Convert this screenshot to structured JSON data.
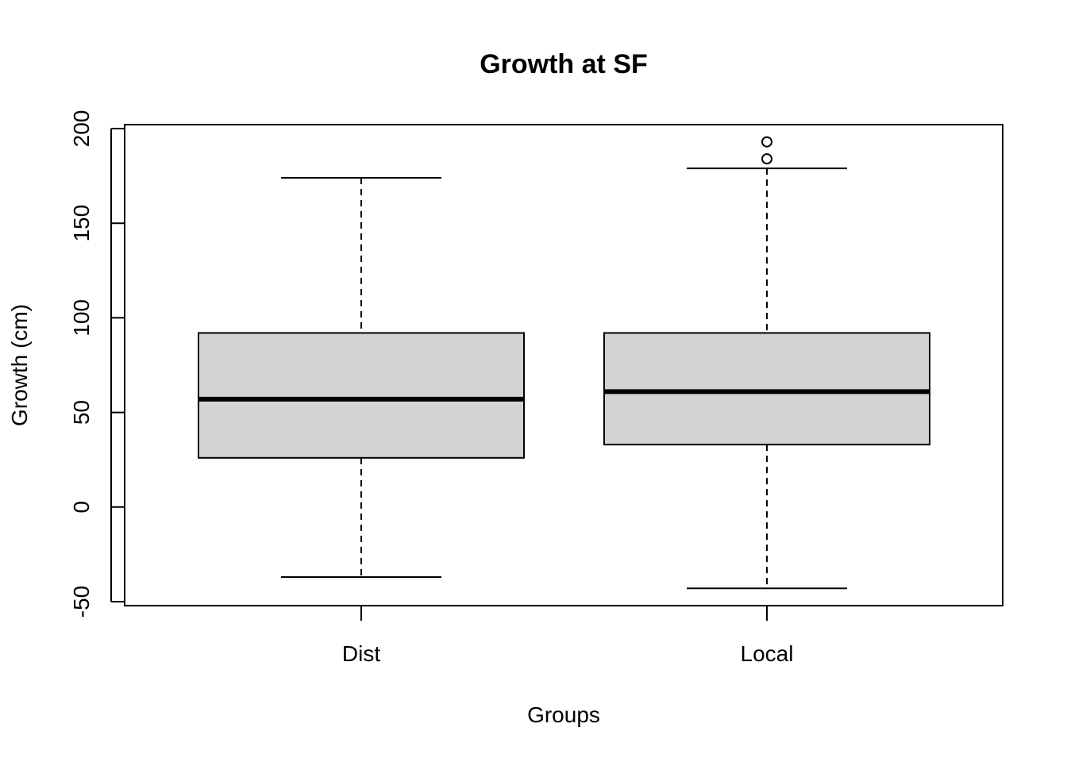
{
  "chart_data": {
    "type": "boxplot",
    "title": "Growth at SF",
    "xlabel": "Groups",
    "ylabel": "Growth (cm)",
    "categories": [
      "Dist",
      "Local"
    ],
    "boxes": [
      {
        "category": "Dist",
        "whisker_low": -37,
        "q1": 26,
        "median": 57,
        "q3": 92,
        "whisker_high": 174,
        "outliers": []
      },
      {
        "category": "Local",
        "whisker_low": -43,
        "q1": 33,
        "median": 61,
        "q3": 92,
        "whisker_high": 179,
        "outliers": [
          184,
          193
        ]
      }
    ],
    "yticks": [
      -50,
      0,
      50,
      100,
      150,
      200
    ],
    "ylim": [
      -52,
      202
    ],
    "box_fill": "#d3d3d3",
    "grid": false
  }
}
